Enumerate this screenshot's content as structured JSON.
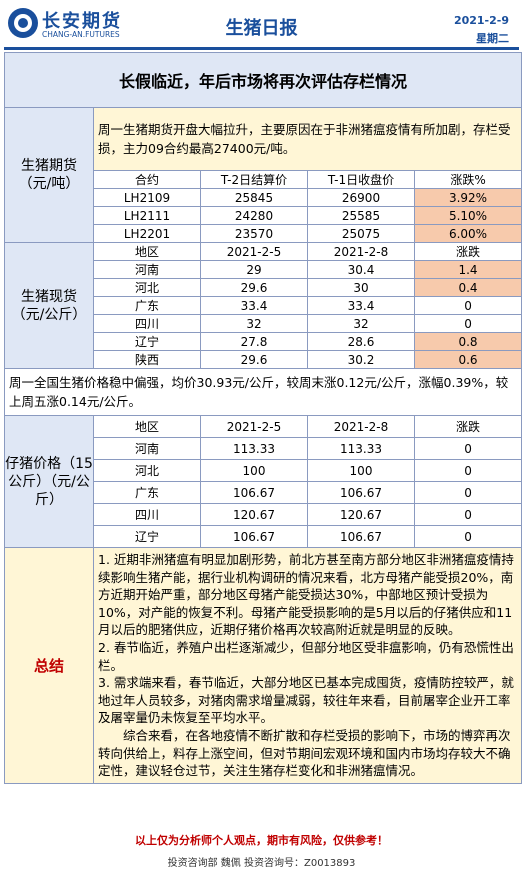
{
  "header": {
    "logo_cn": "长安期货",
    "logo_en": "CHANG-AN.FUTURES",
    "title": "生猪日报",
    "date": "2021-2-9",
    "weekday": "星期二"
  },
  "headline": "长假临近，年后市场将再次评估存栏情况",
  "futures": {
    "label": "生猪期货（元/吨）",
    "commentary": "周一生猪期货开盘大幅拉升，主要原因在于非洲猪瘟疫情有所加剧，存栏受损，主力09合约最高27400元/吨。",
    "headers": [
      "合约",
      "T-2日结算价",
      "T-1日收盘价",
      "涨跌%"
    ],
    "rows": [
      [
        "LH2109",
        "25845",
        "26900",
        "3.92%"
      ],
      [
        "LH2111",
        "24280",
        "25585",
        "5.10%"
      ],
      [
        "LH2201",
        "23570",
        "25075",
        "6.00%"
      ]
    ]
  },
  "spot": {
    "label": "生猪现货（元/公斤）",
    "headers": [
      "地区",
      "2021-2-5",
      "2021-2-8",
      "涨跌"
    ],
    "rows": [
      [
        "河南",
        "29",
        "30.4",
        "1.4"
      ],
      [
        "河北",
        "29.6",
        "30",
        "0.4"
      ],
      [
        "广东",
        "33.4",
        "33.4",
        "0"
      ],
      [
        "四川",
        "32",
        "32",
        "0"
      ],
      [
        "辽宁",
        "27.8",
        "28.6",
        "0.8"
      ],
      [
        "陕西",
        "29.6",
        "30.2",
        "0.6"
      ]
    ],
    "commentary": "周一全国生猪价格稳中偏强，均价30.93元/公斤，较周末涨0.12元/公斤，涨幅0.39%，较上周五涨0.14元/公斤。"
  },
  "piglet": {
    "label": "仔猪价格（15公斤）（元/公斤）",
    "headers": [
      "地区",
      "2021-2-5",
      "2021-2-8",
      "涨跌"
    ],
    "rows": [
      [
        "河南",
        "113.33",
        "113.33",
        "0"
      ],
      [
        "河北",
        "100",
        "100",
        "0"
      ],
      [
        "广东",
        "106.67",
        "106.67",
        "0"
      ],
      [
        "四川",
        "120.67",
        "120.67",
        "0"
      ],
      [
        "辽宁",
        "106.67",
        "106.67",
        "0"
      ]
    ]
  },
  "summary": {
    "label": "总结",
    "paragraphs": [
      "1. 近期非洲猪瘟有明显加剧形势，前北方甚至南方部分地区非洲猪瘟疫情持续影响生猪产能，据行业机构调研的情况来看，北方母猪产能受损20%，南方近期开始严重，部分地区母猪产能受损达30%，中部地区预计受损为10%，对产能的恢复不利。母猪产能受损影响的是5月以后的仔猪供应和11月以后的肥猪供应，近期仔猪价格再次较高附近就是明显的反映。",
      "2. 春节临近，养殖户出栏逐渐减少，但部分地区受非瘟影响，仍有恐慌性出栏。",
      "3. 需求端来看，春节临近，大部分地区已基本完成囤货，疫情防控较严，就地过年人员较多，对猪肉需求增量减弱，较往年来看，目前屠宰企业开工率及屠宰量仍未恢复至平均水平。",
      "综合来看，在各地疫情不断扩散和存栏受损的影响下，市场的博弈再次转向供给上，料存上涨空间，但对节期间宏观环境和国内市场均存较大不确定性，建议轻仓过节，关注生猪存栏变化和非洲猪瘟情况。"
    ]
  },
  "footer": {
    "disclaimer": "以上仅为分析师个人观点，期市有风险，仅供参考！",
    "credit": "投资咨询部  魏佩    投资咨询号：Z0013893"
  },
  "colors": {
    "brand": "#1a4f9c",
    "header_bg": "#dfe7f5",
    "note_bg": "#fff6d6",
    "up_bg": "#f7caac",
    "summary_label": "#c00000"
  }
}
